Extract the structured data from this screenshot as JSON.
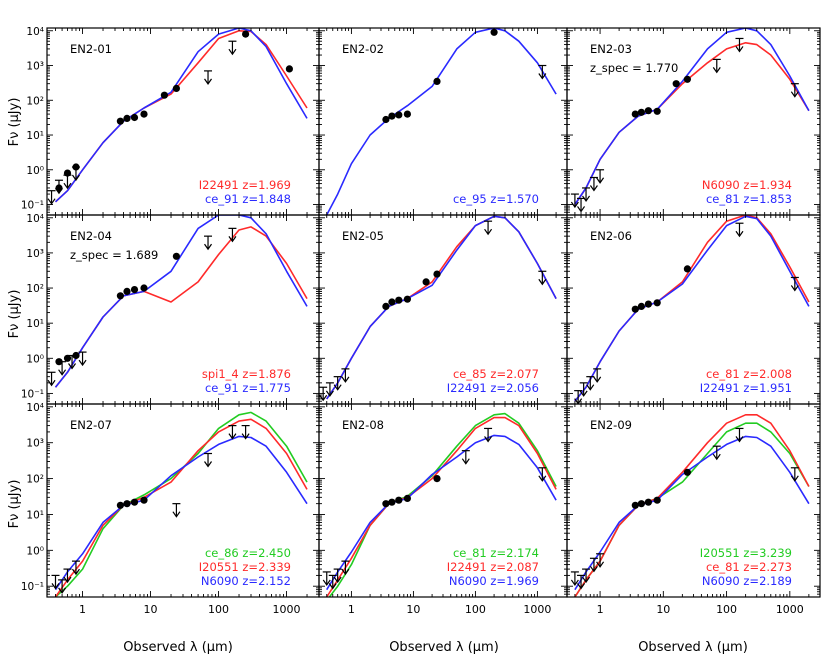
{
  "figure": {
    "xlabel": "Observed λ (μm)",
    "ylabel": "Fν (μJy)",
    "x_ticks": [
      "1",
      "10",
      "100",
      "1000"
    ],
    "y_ticks": [
      "10⁻¹",
      "10⁰",
      "10¹",
      "10²",
      "10³",
      "10⁴"
    ],
    "colors": {
      "first": "#ff2a2a",
      "second": "#2a2aff",
      "third": "#22cc22",
      "data": "#000000"
    }
  },
  "chart_data": [
    {
      "type": "line",
      "xscale": "log",
      "yscale": "log",
      "xlim": [
        0.3,
        3000
      ],
      "ylim": [
        0.05,
        12000
      ],
      "panel_label": "EN2-01",
      "extra_label": "",
      "x": [
        0.4,
        0.6,
        1,
        2,
        4,
        8,
        20,
        50,
        100,
        200,
        300,
        500,
        1000,
        2000
      ],
      "series": [
        {
          "color": "red",
          "legend": "I22491 z=1.969",
          "values": [
            0.12,
            0.25,
            1.0,
            6,
            25,
            60,
            150,
            1200,
            6000,
            10000,
            9500,
            4000,
            500,
            60
          ]
        },
        {
          "color": "blue",
          "legend": "ce_91 z=1.848",
          "values": [
            0.12,
            0.25,
            1.0,
            6,
            25,
            60,
            170,
            2500,
            8000,
            12000,
            10000,
            3500,
            300,
            30
          ]
        }
      ],
      "points": [
        [
          0.45,
          0.3
        ],
        [
          0.6,
          0.8
        ],
        [
          0.8,
          1.2
        ],
        [
          3.6,
          25
        ],
        [
          4.5,
          30
        ],
        [
          5.8,
          32
        ],
        [
          8,
          40
        ],
        [
          16,
          140
        ],
        [
          24,
          220
        ],
        [
          250,
          8000
        ],
        [
          1100,
          800
        ]
      ],
      "upper_limits": [
        [
          0.35,
          0.25
        ],
        [
          0.45,
          0.5
        ],
        [
          0.6,
          0.7
        ],
        [
          0.8,
          1.2
        ],
        [
          70,
          700
        ],
        [
          160,
          5000
        ]
      ]
    },
    {
      "type": "line",
      "xscale": "log",
      "yscale": "log",
      "xlim": [
        0.3,
        3000
      ],
      "ylim": [
        0.05,
        12000
      ],
      "panel_label": "EN2-02",
      "extra_label": "",
      "x": [
        0.4,
        0.6,
        1,
        2,
        4,
        8,
        20,
        50,
        100,
        200,
        300,
        500,
        1000,
        2000
      ],
      "series": [
        {
          "color": "blue",
          "legend": "ce_95 z=1.570",
          "values": [
            0.05,
            0.2,
            1.5,
            10,
            30,
            70,
            250,
            3000,
            9000,
            12000,
            10000,
            5000,
            1200,
            150
          ]
        }
      ],
      "points": [
        [
          3.6,
          28
        ],
        [
          4.5,
          35
        ],
        [
          5.8,
          38
        ],
        [
          8,
          40
        ],
        [
          24,
          350
        ],
        [
          200,
          9000
        ]
      ],
      "upper_limits": [
        [
          1200,
          1000
        ]
      ]
    },
    {
      "type": "line",
      "xscale": "log",
      "yscale": "log",
      "xlim": [
        0.3,
        3000
      ],
      "ylim": [
        0.05,
        12000
      ],
      "panel_label": "EN2-03",
      "extra_label": "z_spec = 1.770",
      "x": [
        0.4,
        0.6,
        1,
        2,
        4,
        8,
        20,
        50,
        100,
        200,
        300,
        500,
        1000,
        2000
      ],
      "series": [
        {
          "color": "red",
          "legend": "N6090 z=1.934",
          "values": [
            0.1,
            0.3,
            2,
            12,
            35,
            55,
            300,
            1200,
            3000,
            4500,
            4000,
            2000,
            400,
            50
          ]
        },
        {
          "color": "blue",
          "legend": "ce_81 z=1.853",
          "values": [
            0.1,
            0.3,
            2,
            12,
            35,
            55,
            350,
            3000,
            9000,
            12000,
            10000,
            4000,
            500,
            50
          ]
        }
      ],
      "points": [
        [
          3.6,
          40
        ],
        [
          4.5,
          45
        ],
        [
          5.8,
          50
        ],
        [
          8,
          48
        ],
        [
          16,
          300
        ],
        [
          24,
          400
        ]
      ],
      "upper_limits": [
        [
          0.4,
          0.2
        ],
        [
          0.5,
          0.15
        ],
        [
          0.6,
          0.3
        ],
        [
          0.8,
          0.6
        ],
        [
          1.0,
          1.0
        ],
        [
          70,
          1500
        ],
        [
          160,
          6000
        ],
        [
          1200,
          300
        ]
      ]
    },
    {
      "type": "line",
      "xscale": "log",
      "yscale": "log",
      "xlim": [
        0.3,
        3000
      ],
      "ylim": [
        0.05,
        12000
      ],
      "panel_label": "EN2-04",
      "extra_label": "z_spec = 1.689",
      "x": [
        0.4,
        0.6,
        1,
        2,
        4,
        8,
        20,
        50,
        100,
        200,
        300,
        500,
        1000,
        2000
      ],
      "series": [
        {
          "color": "red",
          "legend": "spi1_4 z=1.876",
          "values": [
            0.15,
            0.4,
            2,
            15,
            60,
            80,
            40,
            150,
            900,
            4500,
            5500,
            3000,
            500,
            50
          ]
        },
        {
          "color": "blue",
          "legend": "ce_91 z=1.775",
          "values": [
            0.15,
            0.4,
            2,
            15,
            60,
            80,
            300,
            5000,
            12000,
            12000,
            10000,
            3500,
            300,
            30
          ]
        }
      ],
      "points": [
        [
          0.45,
          0.8
        ],
        [
          0.6,
          1.0
        ],
        [
          0.8,
          1.2
        ],
        [
          3.6,
          60
        ],
        [
          4.5,
          80
        ],
        [
          5.8,
          90
        ],
        [
          8,
          100
        ],
        [
          24,
          800
        ]
      ],
      "upper_limits": [
        [
          0.35,
          0.4
        ],
        [
          0.5,
          0.8
        ],
        [
          0.7,
          1.2
        ],
        [
          1.0,
          1.5
        ],
        [
          70,
          3000
        ],
        [
          160,
          5000
        ]
      ]
    },
    {
      "type": "line",
      "xscale": "log",
      "yscale": "log",
      "xlim": [
        0.3,
        3000
      ],
      "ylim": [
        0.05,
        12000
      ],
      "panel_label": "EN2-05",
      "extra_label": "",
      "x": [
        0.4,
        0.6,
        1,
        2,
        4,
        8,
        20,
        50,
        100,
        200,
        300,
        500,
        1000,
        2000
      ],
      "series": [
        {
          "color": "red",
          "legend": "ce_85 z=2.077",
          "values": [
            0.07,
            0.2,
            1.0,
            8,
            30,
            50,
            150,
            1500,
            6000,
            11000,
            10000,
            4000,
            500,
            50
          ]
        },
        {
          "color": "blue",
          "legend": "I22491 z=2.056",
          "values": [
            0.07,
            0.2,
            1.0,
            8,
            30,
            50,
            120,
            1200,
            6000,
            11000,
            10000,
            4000,
            500,
            50
          ]
        }
      ],
      "points": [
        [
          3.6,
          30
        ],
        [
          4.5,
          40
        ],
        [
          5.8,
          45
        ],
        [
          8,
          48
        ],
        [
          16,
          150
        ],
        [
          24,
          250
        ]
      ],
      "upper_limits": [
        [
          0.35,
          0.15
        ],
        [
          0.45,
          0.2
        ],
        [
          0.6,
          0.3
        ],
        [
          0.8,
          0.5
        ],
        [
          160,
          8000
        ],
        [
          1200,
          300
        ]
      ]
    },
    {
      "type": "line",
      "xscale": "log",
      "yscale": "log",
      "xlim": [
        0.3,
        3000
      ],
      "ylim": [
        0.05,
        12000
      ],
      "panel_label": "EN2-06",
      "extra_label": "",
      "x": [
        0.4,
        0.6,
        1,
        2,
        4,
        8,
        20,
        50,
        100,
        200,
        300,
        500,
        1000,
        2000
      ],
      "series": [
        {
          "color": "red",
          "legend": "ce_81 z=2.008",
          "values": [
            0.06,
            0.15,
            0.8,
            6,
            25,
            40,
            150,
            2000,
            8000,
            12000,
            10000,
            3500,
            400,
            40
          ]
        },
        {
          "color": "blue",
          "legend": "I22491 z=1.951",
          "values": [
            0.06,
            0.15,
            0.8,
            6,
            25,
            40,
            130,
            1200,
            6000,
            11000,
            9500,
            3000,
            300,
            30
          ]
        }
      ],
      "points": [
        [
          3.6,
          25
        ],
        [
          4.5,
          30
        ],
        [
          5.8,
          35
        ],
        [
          8,
          38
        ],
        [
          24,
          350
        ]
      ],
      "upper_limits": [
        [
          0.45,
          0.12
        ],
        [
          0.55,
          0.2
        ],
        [
          0.7,
          0.3
        ],
        [
          0.9,
          0.5
        ],
        [
          160,
          7000
        ],
        [
          1200,
          200
        ]
      ]
    },
    {
      "type": "line",
      "xscale": "log",
      "yscale": "log",
      "xlim": [
        0.3,
        3000
      ],
      "ylim": [
        0.05,
        12000
      ],
      "panel_label": "EN2-07",
      "extra_label": "",
      "x": [
        0.4,
        0.6,
        1,
        2,
        4,
        8,
        20,
        50,
        100,
        200,
        300,
        500,
        1000,
        2000
      ],
      "series": [
        {
          "color": "green",
          "legend": "ce_86 z=2.450",
          "values": [
            0.05,
            0.1,
            0.3,
            4,
            18,
            35,
            100,
            500,
            2500,
            6000,
            7000,
            4000,
            800,
            80
          ]
        },
        {
          "color": "red",
          "legend": "I20551 z=2.339",
          "values": [
            0.05,
            0.15,
            0.5,
            5,
            18,
            30,
            80,
            600,
            2000,
            4000,
            4500,
            2500,
            500,
            50
          ]
        },
        {
          "color": "blue",
          "legend": "N6090 z=2.152",
          "values": [
            0.08,
            0.25,
            0.8,
            6,
            18,
            25,
            120,
            400,
            900,
            1500,
            1400,
            800,
            150,
            20
          ]
        }
      ],
      "points": [
        [
          3.6,
          18
        ],
        [
          4.5,
          20
        ],
        [
          5.8,
          22
        ],
        [
          8,
          25
        ]
      ],
      "upper_limits": [
        [
          0.4,
          0.2
        ],
        [
          0.5,
          0.15
        ],
        [
          0.6,
          0.3
        ],
        [
          0.8,
          0.5
        ],
        [
          24,
          20
        ],
        [
          70,
          500
        ],
        [
          160,
          3000
        ],
        [
          250,
          3000
        ]
      ]
    },
    {
      "type": "line",
      "xscale": "log",
      "yscale": "log",
      "xlim": [
        0.3,
        3000
      ],
      "ylim": [
        0.05,
        12000
      ],
      "panel_label": "EN2-08",
      "extra_label": "",
      "x": [
        0.4,
        0.6,
        1,
        2,
        4,
        8,
        20,
        50,
        100,
        200,
        300,
        500,
        1000,
        2000
      ],
      "series": [
        {
          "color": "green",
          "legend": "ce_81 z=2.174",
          "values": [
            0.04,
            0.1,
            0.4,
            5,
            20,
            32,
            120,
            800,
            3000,
            6000,
            6500,
            3500,
            600,
            60
          ]
        },
        {
          "color": "red",
          "legend": "I22491 z=2.087",
          "values": [
            0.05,
            0.15,
            0.6,
            5,
            20,
            30,
            100,
            600,
            2500,
            5000,
            5000,
            3000,
            500,
            50
          ]
        },
        {
          "color": "blue",
          "legend": "N6090 z=1.969",
          "values": [
            0.08,
            0.25,
            0.9,
            6,
            20,
            28,
            130,
            400,
            1000,
            1600,
            1500,
            900,
            200,
            25
          ]
        }
      ],
      "points": [
        [
          3.6,
          20
        ],
        [
          4.5,
          22
        ],
        [
          5.8,
          25
        ],
        [
          8,
          28
        ],
        [
          24,
          100
        ]
      ],
      "upper_limits": [
        [
          0.4,
          0.25
        ],
        [
          0.5,
          0.2
        ],
        [
          0.6,
          0.3
        ],
        [
          0.8,
          0.5
        ],
        [
          70,
          600
        ],
        [
          160,
          2500
        ],
        [
          1200,
          200
        ]
      ]
    },
    {
      "type": "line",
      "xscale": "log",
      "yscale": "log",
      "xlim": [
        0.3,
        3000
      ],
      "ylim": [
        0.05,
        12000
      ],
      "panel_label": "EN2-09",
      "extra_label": "",
      "x": [
        0.4,
        0.6,
        1,
        2,
        4,
        8,
        20,
        50,
        100,
        200,
        300,
        500,
        1000,
        2000
      ],
      "series": [
        {
          "color": "green",
          "legend": "I20551 z=3.239",
          "values": [
            0.05,
            0.15,
            0.5,
            5,
            18,
            28,
            80,
            500,
            2000,
            3500,
            3500,
            2000,
            500,
            60
          ]
        },
        {
          "color": "red",
          "legend": "ce_81 z=2.273",
          "values": [
            0.05,
            0.15,
            0.5,
            5,
            18,
            28,
            150,
            1000,
            3500,
            6000,
            6000,
            3500,
            600,
            60
          ]
        },
        {
          "color": "blue",
          "legend": "N6090 z=2.189",
          "values": [
            0.08,
            0.25,
            0.9,
            6,
            18,
            25,
            130,
            400,
            900,
            1500,
            1400,
            800,
            150,
            20
          ]
        }
      ],
      "points": [
        [
          3.6,
          18
        ],
        [
          4.5,
          20
        ],
        [
          5.8,
          22
        ],
        [
          8,
          25
        ],
        [
          24,
          150
        ]
      ],
      "upper_limits": [
        [
          0.4,
          0.25
        ],
        [
          0.5,
          0.2
        ],
        [
          0.6,
          0.3
        ],
        [
          0.8,
          0.6
        ],
        [
          1.0,
          0.8
        ],
        [
          70,
          800
        ],
        [
          160,
          2500
        ],
        [
          1200,
          200
        ]
      ]
    }
  ]
}
